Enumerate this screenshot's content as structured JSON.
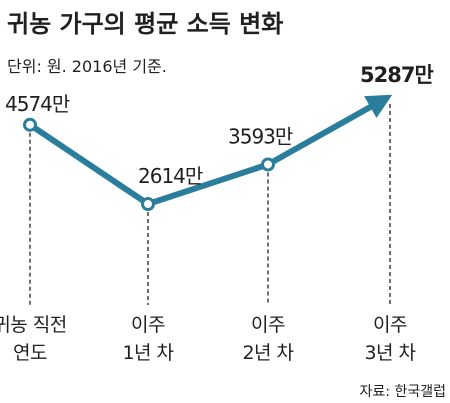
{
  "title": "귀농 가구의 평균 소득 변화",
  "subtitle": "단위: 원. 2016년 기준.",
  "source": "자료: 한국갤럽",
  "colors": {
    "line": "#2a7d9c",
    "marker_fill": "#ffffff",
    "guide": "#231f20",
    "background": "#ffffff",
    "text": "#231f20"
  },
  "chart_data": {
    "type": "line",
    "categories": [
      [
        "귀농 직전",
        "연도"
      ],
      [
        "이주",
        "1년 차"
      ],
      [
        "이주",
        "2년 차"
      ],
      [
        "이주",
        "3년 차"
      ]
    ],
    "values": [
      4574,
      2614,
      3593,
      5287
    ],
    "value_labels": [
      "4574만",
      "2614만",
      "3593만",
      "5287만"
    ],
    "unit": "만 원",
    "last_point_style": "arrow",
    "grid": false,
    "legend": "none"
  }
}
